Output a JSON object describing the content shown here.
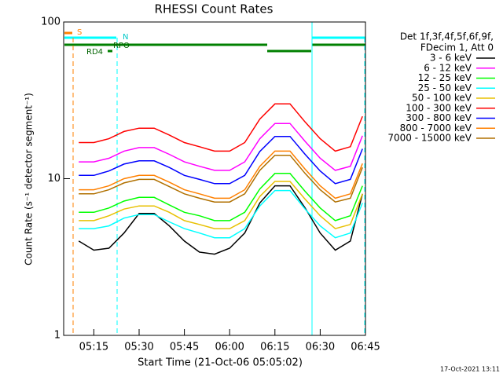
{
  "chart_data": {
    "type": "line",
    "title": "RHESSI Count Rates",
    "xlabel": "Start Time (21-Oct-06 05:05:02)",
    "ylabel": "Count Rate (s⁻¹ detector segment⁻¹)",
    "log_y": true,
    "xlim": [
      "05:05",
      "06:45"
    ],
    "xticks": [
      "05:15",
      "05:30",
      "05:45",
      "06:00",
      "06:15",
      "06:30",
      "06:45"
    ],
    "ylim": [
      1,
      100
    ],
    "yticks": [
      1,
      10,
      100
    ],
    "legend_header": [
      "Det 1f,3f,4f,5f,6f,9f,",
      "FDecim 1, Att 0"
    ],
    "annotations": [
      "S",
      "N",
      "RPO",
      "RD4"
    ],
    "timestamp": "17-Oct-2021 13:11",
    "x": [
      "05:10",
      "05:15",
      "05:20",
      "05:25",
      "05:30",
      "05:35",
      "05:40",
      "05:45",
      "05:50",
      "05:55",
      "06:00",
      "06:05",
      "06:10",
      "06:15",
      "06:20",
      "06:25",
      "06:30",
      "06:35",
      "06:40",
      "06:44"
    ],
    "series": [
      {
        "name": "3 - 6 keV",
        "color": "#000000",
        "values": [
          4,
          3.5,
          3.6,
          4.5,
          6,
          6,
          5,
          4,
          3.4,
          3.3,
          3.6,
          4.5,
          7,
          9,
          9,
          6.5,
          4.5,
          3.5,
          4,
          8
        ]
      },
      {
        "name": "6 - 12 keV",
        "color": "#ff00ff",
        "values": [
          12.8,
          12.8,
          13.5,
          15,
          15.8,
          15.8,
          14.3,
          12.8,
          12,
          11.3,
          11.3,
          12.8,
          18,
          22.5,
          22.5,
          17.3,
          13.5,
          11.3,
          12,
          18.8
        ]
      },
      {
        "name": "12 - 25 keV",
        "color": "#00ff00",
        "values": [
          6.1,
          6.1,
          6.5,
          7.2,
          7.6,
          7.6,
          6.8,
          6.1,
          5.8,
          5.4,
          5.4,
          6.1,
          8.6,
          10.8,
          10.8,
          8.3,
          6.5,
          5.4,
          5.8,
          9
        ]
      },
      {
        "name": "25 - 50 keV",
        "color": "#00ffff",
        "values": [
          4.8,
          4.8,
          5,
          5.6,
          5.9,
          5.9,
          5.3,
          4.8,
          4.5,
          4.2,
          4.2,
          4.8,
          6.7,
          8.4,
          8.4,
          6.4,
          5,
          4.2,
          4.5,
          7
        ]
      },
      {
        "name": "50 - 100 keV",
        "color": "#e8c000",
        "values": [
          5.4,
          5.4,
          5.8,
          6.4,
          6.7,
          6.7,
          6.1,
          5.4,
          5.1,
          4.8,
          4.8,
          5.4,
          7.7,
          9.6,
          9.6,
          7.4,
          5.8,
          4.8,
          5.1,
          8
        ]
      },
      {
        "name": "100 - 300 keV",
        "color": "#ff0000",
        "values": [
          17,
          17,
          18,
          20,
          21,
          21,
          19,
          17,
          16,
          15,
          15,
          17,
          24,
          30,
          30,
          23,
          18,
          15,
          16,
          25
        ]
      },
      {
        "name": "300 - 800 keV",
        "color": "#0000ff",
        "values": [
          10.5,
          10.5,
          11.2,
          12.4,
          13,
          13,
          11.8,
          10.5,
          9.9,
          9.3,
          9.3,
          10.5,
          14.9,
          18.6,
          18.6,
          14.3,
          11.2,
          9.3,
          9.9,
          15.5
        ]
      },
      {
        "name": "800 - 7000 keV",
        "color": "#ff8000",
        "values": [
          8.5,
          8.5,
          9,
          10,
          10.5,
          10.5,
          9.5,
          8.5,
          8,
          7.5,
          7.5,
          8.5,
          12,
          15,
          15,
          11.5,
          9,
          7.5,
          8,
          12.5
        ]
      },
      {
        "name": "7000 - 15000 keV",
        "color": "#b07000",
        "values": [
          8,
          8,
          8.5,
          9.4,
          9.9,
          9.9,
          8.9,
          8,
          7.5,
          7.1,
          7.1,
          8,
          11.3,
          14.1,
          14.1,
          10.8,
          8.5,
          7.1,
          7.5,
          11.8
        ]
      }
    ]
  }
}
